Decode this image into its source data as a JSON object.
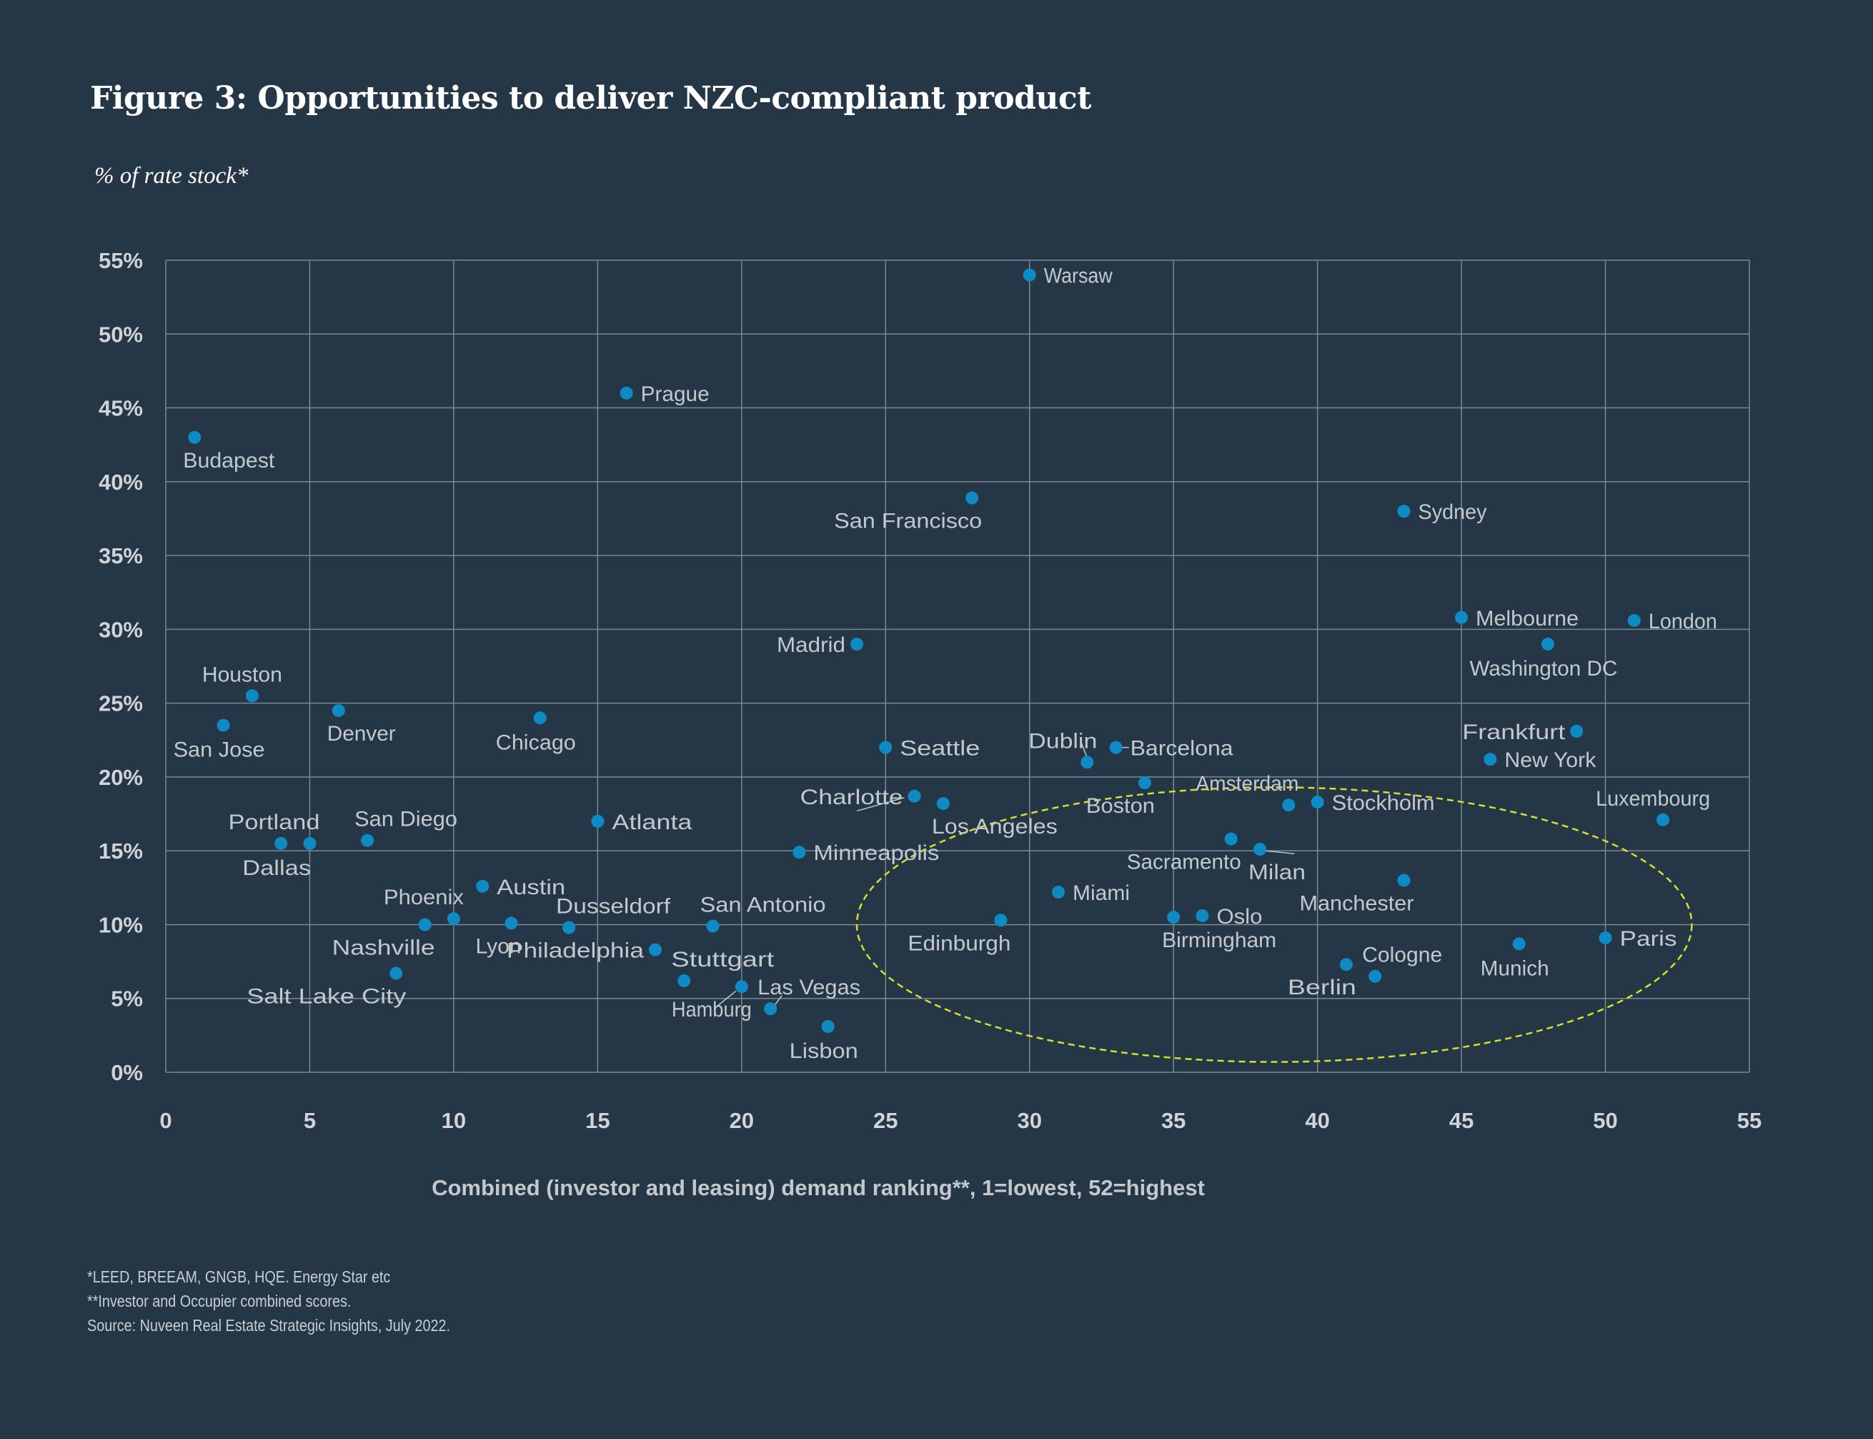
{
  "title": "Figure 3: Opportunities to deliver NZC-compliant product",
  "subtitle": "% of rate stock*",
  "footnotes": [
    "*LEED, BREEAM, GNGB, HQE. Energy Star etc",
    "**Investor and Occupier combined scores.",
    "Source: Nuveen Real Estate Strategic Insights, July 2022."
  ],
  "colors": {
    "background": "#253746",
    "point": "#0e8bc4",
    "grid": "#7b8894",
    "label": "#c3c8cd",
    "tick": "#d0d4d8",
    "highlight": "#d2e12c"
  },
  "chart_data": {
    "type": "scatter",
    "title": "Figure 3: Opportunities to deliver NZC-compliant product",
    "xlabel": "Combined (investor and leasing) demand ranking**, 1=lowest, 52=highest",
    "ylabel": "% of rate stock*",
    "xlim": [
      0,
      55
    ],
    "ylim": [
      0,
      55
    ],
    "xticks": [
      0,
      5,
      10,
      15,
      20,
      25,
      30,
      35,
      40,
      45,
      50,
      55
    ],
    "yticks": [
      0,
      5,
      10,
      15,
      20,
      25,
      30,
      35,
      40,
      45,
      50,
      55
    ],
    "xtick_labels": [
      "0",
      "5",
      "10",
      "15",
      "20",
      "25",
      "30",
      "35",
      "40",
      "45",
      "50",
      "55"
    ],
    "ytick_labels": [
      "0%",
      "5%",
      "10%",
      "15%",
      "20%",
      "25%",
      "30%",
      "35%",
      "40%",
      "45%",
      "50%",
      "55%"
    ],
    "grid": true,
    "highlight_region": {
      "shape": "ellipse",
      "center": [
        38.5,
        10
      ],
      "radius": [
        14.5,
        9.3
      ],
      "style": "dashed"
    },
    "points": [
      {
        "name": "Budapest",
        "x": 1,
        "y": 43,
        "label_pos": "below-right"
      },
      {
        "name": "San Jose",
        "x": 2,
        "y": 23.5,
        "label_pos": "below"
      },
      {
        "name": "Houston",
        "x": 3,
        "y": 25.5,
        "label_pos": "above"
      },
      {
        "name": "Dallas",
        "x": 4,
        "y": 15.5,
        "label_pos": "below"
      },
      {
        "name": "Portland",
        "x": 5,
        "y": 15.5,
        "label_pos": "above-left"
      },
      {
        "name": "Denver",
        "x": 6,
        "y": 24.5,
        "label_pos": "below-right"
      },
      {
        "name": "San Diego",
        "x": 7,
        "y": 15.7,
        "label_pos": "above-right"
      },
      {
        "name": "Salt Lake City",
        "x": 8,
        "y": 6.7,
        "label_pos": "below-left"
      },
      {
        "name": "Nashville",
        "x": 9,
        "y": 10,
        "label_pos": "below-left"
      },
      {
        "name": "Phoenix",
        "x": 10,
        "y": 10.4,
        "label_pos": "above-left"
      },
      {
        "name": "Austin",
        "x": 11,
        "y": 12.6,
        "label_pos": "right"
      },
      {
        "name": "Lyon",
        "x": 12,
        "y": 10.1,
        "label_pos": "below-left"
      },
      {
        "name": "Chicago",
        "x": 13,
        "y": 24,
        "label_pos": "below"
      },
      {
        "name": "Dusseldorf",
        "x": 14,
        "y": 9.8,
        "label_pos": "above-right"
      },
      {
        "name": "Atlanta",
        "x": 15,
        "y": 17,
        "label_pos": "right"
      },
      {
        "name": "Prague",
        "x": 16,
        "y": 46,
        "label_pos": "right"
      },
      {
        "name": "Philadelphia",
        "x": 17,
        "y": 8.3,
        "label_pos": "left"
      },
      {
        "name": "Stuttgart",
        "x": 18,
        "y": 6.2,
        "label_pos": "above-right"
      },
      {
        "name": "San Antonio",
        "x": 19,
        "y": 9.9,
        "label_pos": "above-right"
      },
      {
        "name": "Hamburg",
        "x": 20,
        "y": 5.8,
        "label_pos": "below-left"
      },
      {
        "name": "Las Vegas",
        "x": 21,
        "y": 4.3,
        "label_pos": "above-right"
      },
      {
        "name": "Minneapolis",
        "x": 22,
        "y": 14.9,
        "label_pos": "right"
      },
      {
        "name": "Lisbon",
        "x": 23,
        "y": 3.1,
        "label_pos": "below"
      },
      {
        "name": "Madrid",
        "x": 24,
        "y": 29,
        "label_pos": "left"
      },
      {
        "name": "Seattle",
        "x": 25,
        "y": 22,
        "label_pos": "right"
      },
      {
        "name": "Charlotte",
        "x": 26,
        "y": 18.7,
        "label_pos": "left"
      },
      {
        "name": "Los Angeles",
        "x": 27,
        "y": 18.2,
        "label_pos": "below-right"
      },
      {
        "name": "San Francisco",
        "x": 28,
        "y": 38.9,
        "label_pos": "below-left"
      },
      {
        "name": "Edinburgh",
        "x": 29,
        "y": 10.3,
        "label_pos": "below-left"
      },
      {
        "name": "Warsaw",
        "x": 30,
        "y": 54,
        "label_pos": "right"
      },
      {
        "name": "Miami",
        "x": 31,
        "y": 12.2,
        "label_pos": "right"
      },
      {
        "name": "Dublin",
        "x": 32,
        "y": 21,
        "label_pos": "above-left"
      },
      {
        "name": "Barcelona",
        "x": 33,
        "y": 22,
        "label_pos": "right"
      },
      {
        "name": "Boston",
        "x": 34,
        "y": 19.6,
        "label_pos": "below-left"
      },
      {
        "name": "Birmingham",
        "x": 35,
        "y": 10.5,
        "label_pos": "below-right"
      },
      {
        "name": "Oslo",
        "x": 36,
        "y": 10.6,
        "label_pos": "right"
      },
      {
        "name": "Sacramento",
        "x": 37,
        "y": 15.8,
        "label_pos": "below-left"
      },
      {
        "name": "Milan",
        "x": 38,
        "y": 15.1,
        "label_pos": "below-right"
      },
      {
        "name": "Amsterdam",
        "x": 39,
        "y": 18.1,
        "label_pos": "above-left"
      },
      {
        "name": "Stockholm",
        "x": 40,
        "y": 18.3,
        "label_pos": "right"
      },
      {
        "name": "Berlin",
        "x": 41,
        "y": 7.3,
        "label_pos": "below-left"
      },
      {
        "name": "Cologne",
        "x": 42,
        "y": 6.5,
        "label_pos": "above-right"
      },
      {
        "name": "Sydney",
        "x": 43,
        "y": 38,
        "label_pos": "right"
      },
      {
        "name": "Manchester",
        "x": 43,
        "y": 13,
        "label_pos": "below-left"
      },
      {
        "name": "Melbourne",
        "x": 45,
        "y": 30.8,
        "label_pos": "right"
      },
      {
        "name": "New York",
        "x": 46,
        "y": 21.2,
        "label_pos": "right"
      },
      {
        "name": "Munich",
        "x": 47,
        "y": 8.7,
        "label_pos": "below"
      },
      {
        "name": "Washington DC",
        "x": 48,
        "y": 29,
        "label_pos": "below"
      },
      {
        "name": "Frankfurt",
        "x": 49,
        "y": 23.1,
        "label_pos": "left"
      },
      {
        "name": "Paris",
        "x": 50,
        "y": 9.1,
        "label_pos": "right"
      },
      {
        "name": "London",
        "x": 51,
        "y": 30.6,
        "label_pos": "right"
      },
      {
        "name": "Luxembourg",
        "x": 52,
        "y": 17.1,
        "label_pos": "above"
      }
    ]
  }
}
